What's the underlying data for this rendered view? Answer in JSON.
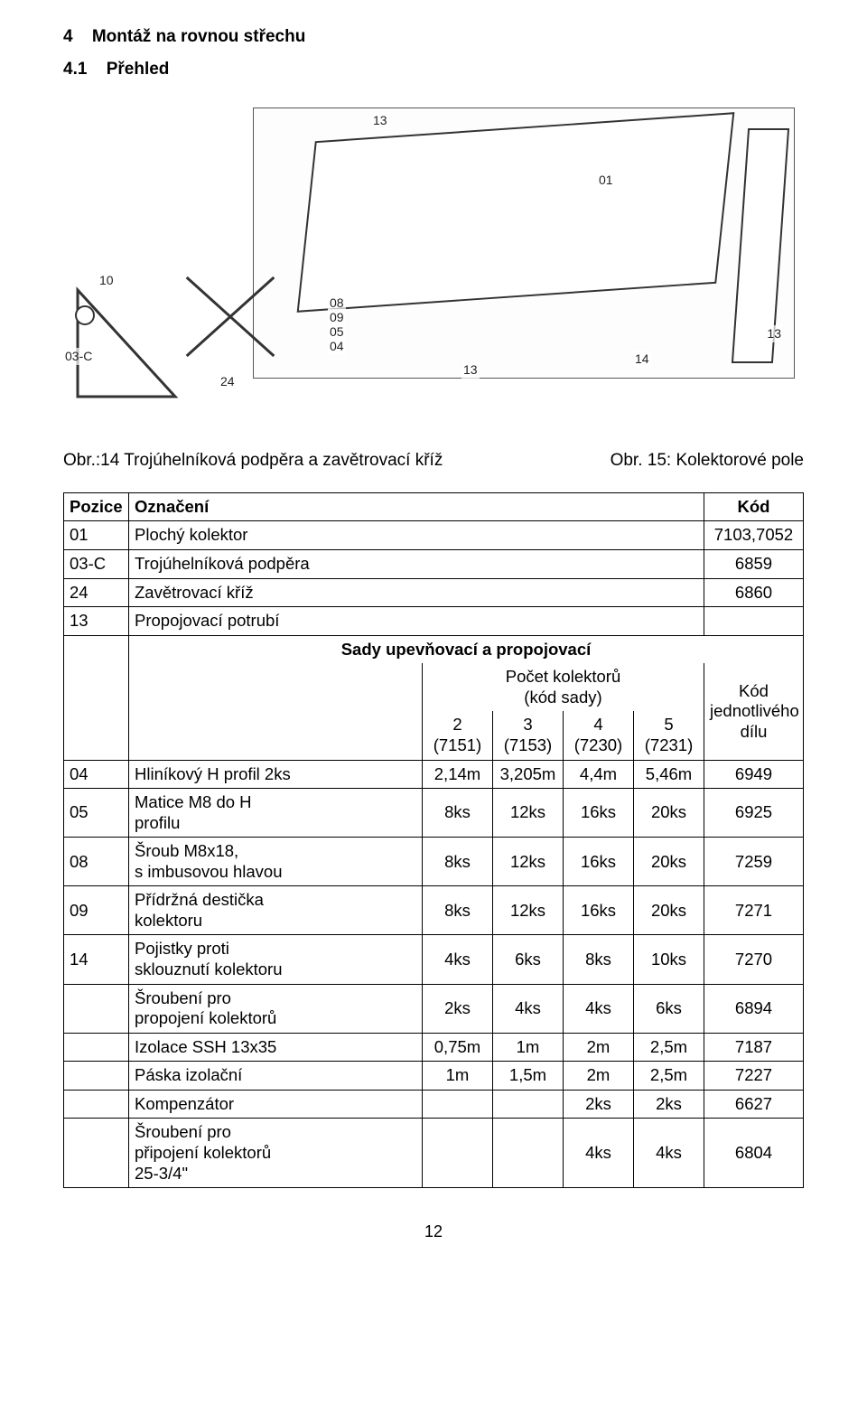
{
  "headings": {
    "h1_num": "4",
    "h1_text": "Montáž na rovnou střechu",
    "h2_num": "4.1",
    "h2_text": "Přehled"
  },
  "figure_labels": {
    "n13_a": "13",
    "n01": "01",
    "n10": "10",
    "n08": "08",
    "n09": "09",
    "n05": "05",
    "n04": "04",
    "n13_b": "13",
    "n14": "14",
    "n13_c": "13",
    "n03c": "03-C",
    "n24": "24"
  },
  "captions": {
    "left": "Obr.:14 Trojúhelníková podpěra a zavětrovací kříž",
    "right": "Obr. 15: Kolektorové pole"
  },
  "table": {
    "head": {
      "pozice": "Pozice",
      "oznaceni": "Označení",
      "kod": "Kód",
      "sady": "Sady upevňovací a propojovací",
      "pocet": "Počet kolektorů\n(kód sady)",
      "kod_dilu": "Kód\njednotlivého\ndílu",
      "c2a": "2",
      "c2b": "(7151)",
      "c3a": "3",
      "c3b": "(7153)",
      "c4a": "4",
      "c4b": "(7230)",
      "c5a": "5",
      "c5b": "(7231)"
    },
    "top_rows": [
      {
        "poz": "01",
        "ozn": "Plochý kolektor",
        "kod": "7103,7052"
      },
      {
        "poz": "03-C",
        "ozn": "Trojúhelníková podpěra",
        "kod": "6859"
      },
      {
        "poz": "24",
        "ozn": "Zavětrovací kříž",
        "kod": "6860"
      },
      {
        "poz": "13",
        "ozn": "Propojovací potrubí",
        "kod": ""
      }
    ],
    "body_rows": [
      {
        "poz": "04",
        "ozn": "Hliníkový H profil 2ks",
        "v2": "2,14m",
        "v3": "3,205m",
        "v4": "4,4m",
        "v5": "5,46m",
        "kod": "6949"
      },
      {
        "poz": "05",
        "ozn": "Matice M8 do H\nprofilu",
        "v2": "8ks",
        "v3": "12ks",
        "v4": "16ks",
        "v5": "20ks",
        "kod": "6925"
      },
      {
        "poz": "08",
        "ozn": "Šroub M8x18,\ns imbusovou hlavou",
        "v2": "8ks",
        "v3": "12ks",
        "v4": "16ks",
        "v5": "20ks",
        "kod": "7259"
      },
      {
        "poz": "09",
        "ozn": "Přídržná destička\nkolektoru",
        "v2": "8ks",
        "v3": "12ks",
        "v4": "16ks",
        "v5": "20ks",
        "kod": "7271"
      },
      {
        "poz": "14",
        "ozn": "Pojistky proti\nsklouznutí kolektoru",
        "v2": "4ks",
        "v3": "6ks",
        "v4": "8ks",
        "v5": "10ks",
        "kod": "7270"
      },
      {
        "poz": "",
        "ozn": "Šroubení pro\npropojení kolektorů",
        "v2": "2ks",
        "v3": "4ks",
        "v4": "4ks",
        "v5": "6ks",
        "kod": "6894"
      },
      {
        "poz": "",
        "ozn": "Izolace SSH 13x35",
        "v2": "0,75m",
        "v3": "1m",
        "v4": "2m",
        "v5": "2,5m",
        "kod": "7187"
      },
      {
        "poz": "",
        "ozn": "Páska izolační",
        "v2": "1m",
        "v3": "1,5m",
        "v4": "2m",
        "v5": "2,5m",
        "kod": "7227"
      },
      {
        "poz": "",
        "ozn": "Kompenzátor",
        "v2": "",
        "v3": "",
        "v4": "2ks",
        "v5": "2ks",
        "kod": "6627"
      },
      {
        "poz": "",
        "ozn": "Šroubení pro\npřipojení kolektorů\n25-3/4\"",
        "v2": "",
        "v3": "",
        "v4": "4ks",
        "v5": "4ks",
        "kod": "6804"
      }
    ]
  },
  "page_number": "12",
  "colors": {
    "text": "#000000",
    "bg": "#ffffff",
    "border": "#000000",
    "fig_stroke": "#333333"
  }
}
